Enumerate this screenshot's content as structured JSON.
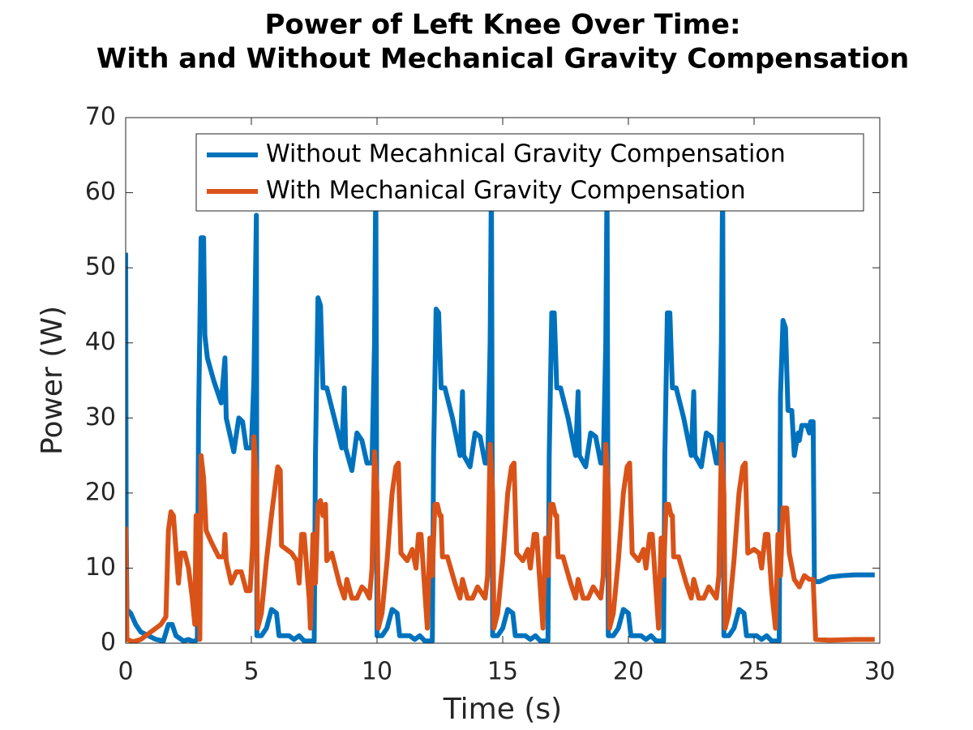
{
  "chart_data": {
    "type": "line",
    "title": [
      "Power of Left Knee Over Time:",
      "With and Without Mechanical Gravity Compensation"
    ],
    "xlabel": "Time (s)",
    "ylabel": "Power (W)",
    "xlim": [
      0,
      30
    ],
    "ylim": [
      0,
      70
    ],
    "xticks": [
      0,
      5,
      10,
      15,
      20,
      25,
      30
    ],
    "yticks": [
      0,
      10,
      20,
      30,
      40,
      50,
      60,
      70
    ],
    "grid": false,
    "legend": "upper right",
    "series": [
      {
        "name": "Without Mecahnical Gravity Compensation",
        "color": "#0072bd",
        "x": [
          0,
          0.02,
          0.05,
          0.2,
          0.4,
          0.6,
          0.9,
          1.2,
          1.5,
          1.7,
          1.85,
          2.0,
          2.3,
          2.5,
          2.7,
          2.85,
          2.9,
          3.0,
          3.1,
          3.15,
          3.25,
          3.5,
          3.8,
          3.95,
          4.0,
          4.3,
          4.5,
          4.65,
          4.8,
          5.0,
          5.1,
          5.2,
          5.22,
          5.4,
          5.6,
          5.8,
          6.0,
          6.1,
          6.5,
          6.7,
          6.9,
          7.1,
          7.5,
          7.55,
          7.65,
          7.75,
          7.85,
          8.0,
          8.3,
          8.6,
          8.7,
          8.75,
          9.0,
          9.2,
          9.4,
          9.6,
          9.8,
          9.9,
          9.95,
          10.0,
          10.2,
          10.4,
          10.6,
          10.8,
          10.9,
          11.3,
          11.5,
          11.7,
          11.9,
          12.2,
          12.25,
          12.35,
          12.45,
          12.55,
          12.7,
          13.0,
          13.3,
          13.4,
          13.45,
          13.7,
          13.9,
          14.1,
          14.3,
          14.4,
          14.5,
          14.55,
          14.6,
          14.8,
          15.0,
          15.2,
          15.4,
          15.5,
          15.9,
          16.1,
          16.3,
          16.5,
          16.8,
          16.85,
          16.95,
          17.05,
          17.15,
          17.3,
          17.6,
          17.9,
          18.0,
          18.05,
          18.3,
          18.5,
          18.7,
          18.9,
          19.0,
          19.1,
          19.15,
          19.2,
          19.4,
          19.6,
          19.8,
          20.0,
          20.1,
          20.5,
          20.7,
          20.9,
          21.1,
          21.4,
          21.45,
          21.55,
          21.65,
          21.75,
          21.9,
          22.2,
          22.5,
          22.6,
          22.65,
          22.9,
          23.1,
          23.3,
          23.5,
          23.6,
          23.7,
          23.75,
          23.8,
          24.0,
          24.2,
          24.4,
          24.6,
          24.7,
          25.1,
          25.3,
          25.5,
          25.7,
          26.0,
          26.05,
          26.15,
          26.25,
          26.35,
          26.5,
          26.6,
          26.75,
          26.8,
          26.9,
          27.1,
          27.2,
          27.25,
          27.35,
          27.4,
          27.6,
          28.0,
          28.5,
          29.0,
          29.8
        ],
        "values": [
          52,
          15,
          4.5,
          4,
          2.5,
          1.5,
          1,
          0.5,
          0.3,
          2.5,
          2.5,
          1,
          0.3,
          0.5,
          0.2,
          0.5,
          30,
          54,
          54,
          41,
          38,
          35,
          32,
          38,
          30,
          25.5,
          30,
          29.5,
          26,
          26,
          35,
          57,
          1,
          1,
          2,
          4.5,
          4,
          1,
          1,
          0.5,
          1,
          0.3,
          0.3,
          25,
          46,
          45,
          34,
          34,
          30,
          26,
          34,
          26,
          23,
          28,
          27,
          24,
          24,
          40,
          62,
          1,
          1,
          2,
          4.5,
          4,
          1,
          1,
          0.5,
          1,
          0.3,
          0.3,
          25,
          44.5,
          44,
          34,
          34,
          30,
          25,
          33.5,
          25,
          23.5,
          28,
          27.5,
          24,
          24,
          40,
          62,
          1,
          1,
          2,
          4.5,
          4,
          1,
          1,
          0.5,
          1,
          0.3,
          0.3,
          25,
          44,
          44,
          34,
          34,
          30,
          25,
          33.5,
          25,
          23.5,
          28,
          27.5,
          24,
          24,
          40,
          62,
          1,
          1,
          2,
          4.5,
          4,
          1,
          1,
          0.5,
          1,
          0.3,
          0.3,
          25,
          44,
          44,
          34,
          34,
          30,
          25,
          33.5,
          25,
          23.5,
          28,
          27.5,
          24,
          24,
          40,
          62,
          1,
          1,
          2,
          4.5,
          4,
          1,
          1,
          0.5,
          1,
          0.3,
          0.3,
          33,
          43,
          42,
          31,
          31,
          25,
          28,
          27,
          29,
          29,
          28,
          29.5,
          29.5,
          8.2,
          8.2,
          8.8,
          9,
          9.1,
          9.1
        ]
      },
      {
        "name": "With Mechanical Gravity Compensation",
        "color": "#d95319",
        "x": [
          0,
          0.05,
          0.3,
          0.6,
          1.0,
          1.4,
          1.6,
          1.7,
          1.8,
          1.9,
          2.1,
          2.2,
          2.35,
          2.5,
          2.65,
          2.75,
          2.8,
          2.85,
          2.9,
          2.95,
          3.0,
          3.1,
          3.2,
          3.4,
          3.7,
          3.9,
          3.95,
          4.0,
          4.2,
          4.4,
          4.6,
          4.8,
          4.95,
          5.05,
          5.1,
          5.2,
          5.25,
          5.4,
          5.6,
          5.8,
          5.95,
          6.05,
          6.15,
          6.2,
          6.4,
          6.6,
          6.8,
          6.9,
          7.0,
          7.1,
          7.3,
          7.35,
          7.45,
          7.55,
          7.65,
          7.75,
          7.85,
          7.95,
          8.0,
          8.2,
          8.5,
          8.7,
          8.8,
          9.0,
          9.2,
          9.4,
          9.55,
          9.7,
          9.8,
          9.9,
          10.0,
          10.05,
          10.2,
          10.4,
          10.6,
          10.75,
          10.85,
          10.95,
          11.2,
          11.4,
          11.55,
          11.65,
          11.75,
          11.9,
          12.0,
          12.1,
          12.2,
          12.3,
          12.4,
          12.5,
          12.55,
          12.6,
          12.8,
          13.1,
          13.3,
          13.4,
          13.6,
          13.8,
          14.0,
          14.1,
          14.3,
          14.4,
          14.5,
          14.6,
          14.65,
          14.8,
          15.0,
          15.2,
          15.35,
          15.45,
          15.55,
          15.8,
          16.0,
          16.1,
          16.25,
          16.35,
          16.5,
          16.6,
          16.7,
          16.8,
          16.9,
          17.0,
          17.1,
          17.15,
          17.2,
          17.4,
          17.7,
          17.9,
          18.0,
          18.2,
          18.4,
          18.6,
          18.7,
          18.9,
          19.0,
          19.1,
          19.2,
          19.25,
          19.4,
          19.6,
          19.8,
          19.95,
          20.05,
          20.15,
          20.4,
          20.6,
          20.7,
          20.85,
          20.95,
          21.1,
          21.2,
          21.3,
          21.4,
          21.5,
          21.6,
          21.7,
          21.75,
          21.8,
          22.0,
          22.3,
          22.5,
          22.6,
          22.8,
          23.0,
          23.2,
          23.3,
          23.5,
          23.6,
          23.7,
          23.8,
          23.85,
          24.0,
          24.2,
          24.4,
          24.55,
          24.65,
          24.75,
          25.0,
          25.2,
          25.3,
          25.45,
          25.55,
          25.7,
          25.85,
          25.95,
          26.05,
          26.15,
          26.3,
          26.4,
          26.6,
          26.8,
          27.0,
          27.2,
          27.35,
          27.45,
          28,
          29,
          29.8
        ],
        "values": [
          15.5,
          0.5,
          0.2,
          0.5,
          1.5,
          2.5,
          3.5,
          15,
          17.5,
          17,
          8,
          12,
          12,
          10,
          6,
          2.5,
          17,
          9,
          17,
          0.5,
          25,
          22,
          15,
          13.5,
          11.5,
          11.5,
          14.5,
          11,
          8,
          9.5,
          9.5,
          7,
          7,
          13,
          27.5,
          22,
          2,
          4,
          11,
          17,
          21,
          23.5,
          23,
          13,
          12.5,
          12,
          11,
          8,
          14.5,
          14.5,
          6,
          2,
          14.5,
          8,
          18.5,
          19,
          17,
          18.5,
          11,
          12,
          8,
          6,
          8.5,
          6,
          6,
          7.5,
          7,
          6,
          10,
          25.5,
          20,
          2,
          4,
          11,
          20,
          23.5,
          24,
          12,
          11,
          12.5,
          10,
          14.5,
          14.5,
          7,
          2,
          14,
          9,
          18.5,
          18.5,
          17,
          17,
          11.5,
          11.5,
          8,
          6,
          8.5,
          6,
          6,
          7.5,
          7,
          6,
          9,
          26.5,
          20,
          2,
          4,
          11,
          20,
          23.5,
          24,
          12,
          11,
          12.5,
          10,
          14.5,
          14.5,
          7,
          2,
          14,
          9,
          18.5,
          18.5,
          17,
          17,
          11.5,
          11.5,
          8,
          6,
          8.5,
          6,
          6,
          7.5,
          7,
          6,
          9,
          26.5,
          20,
          2,
          4,
          11,
          20,
          23.5,
          24,
          12,
          11,
          12.5,
          10,
          14.5,
          14.5,
          7,
          2,
          14,
          9,
          18.5,
          18.5,
          17,
          17,
          11.5,
          11.5,
          8,
          6,
          8.5,
          6,
          6,
          7.5,
          7,
          6,
          9,
          26.5,
          20,
          2,
          4,
          11,
          20,
          23.5,
          24,
          12,
          12.5,
          12,
          10,
          14.5,
          14.5,
          7,
          2,
          14.5,
          9,
          18,
          18,
          12,
          8.5,
          7.5,
          9,
          8.5,
          8.5,
          0.5,
          0.4,
          0.5,
          0.5
        ]
      }
    ]
  }
}
